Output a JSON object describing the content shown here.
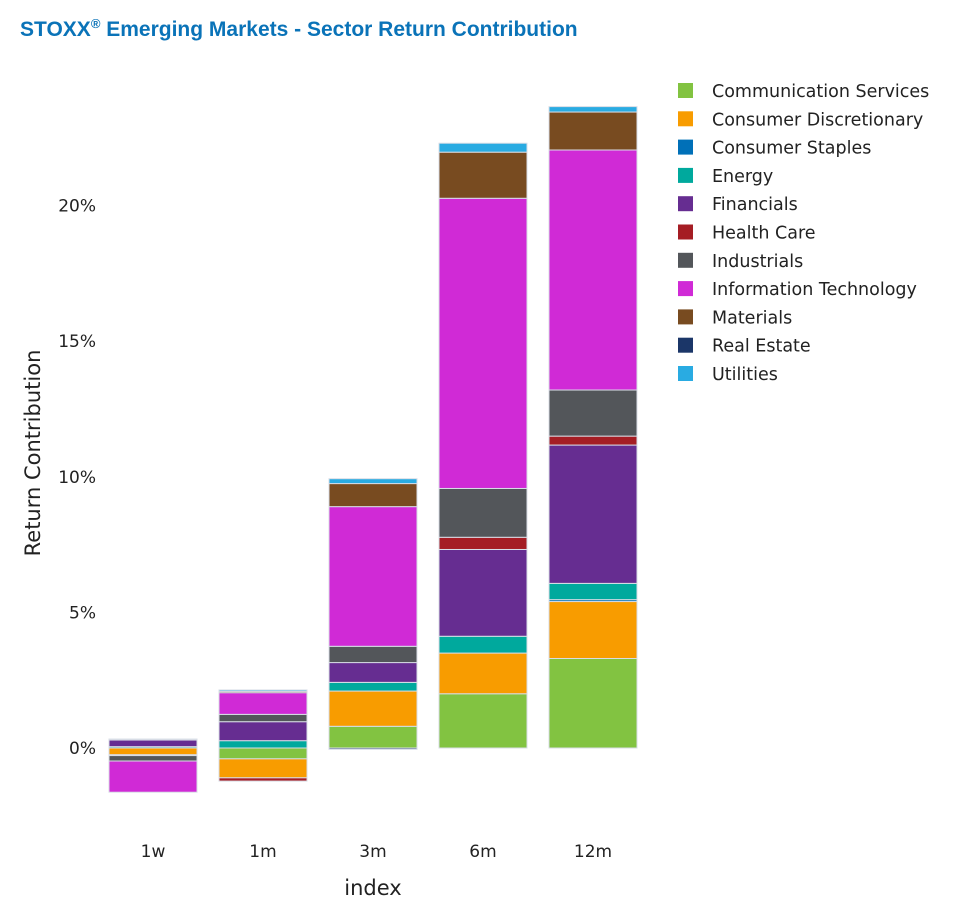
{
  "chart_data": {
    "type": "bar",
    "stacked": true,
    "title": "STOXX",
    "title_sup": "®",
    "title_rest": " Emerging Markets - Sector Return Contribution",
    "xlabel": "index",
    "ylabel": "Return Contribution",
    "categories": [
      "1w",
      "1m",
      "3m",
      "6m",
      "12m"
    ],
    "yticks": [
      0,
      5,
      10,
      15,
      20
    ],
    "ytick_labels": [
      "0%",
      "5%",
      "10%",
      "15%",
      "20%"
    ],
    "ylim": [
      -2.5,
      24.5
    ],
    "legend_position": "top-right",
    "series": [
      {
        "name": "Communication Services",
        "color": "#82c341",
        "values": [
          0,
          -0.4,
          0.8,
          2.0,
          3.3
        ]
      },
      {
        "name": "Consumer Discretionary",
        "color": "#f89c00",
        "values": [
          -0.25,
          -0.7,
          1.3,
          1.5,
          2.1
        ]
      },
      {
        "name": "Consumer Staples",
        "color": "#0070b8",
        "values": [
          -0.03,
          0,
          0,
          0,
          0.07
        ]
      },
      {
        "name": "Energy",
        "color": "#00a99d",
        "values": [
          0.05,
          0.27,
          0.32,
          0.62,
          0.6
        ]
      },
      {
        "name": "Financials",
        "color": "#662d91",
        "values": [
          0.25,
          0.7,
          0.73,
          3.2,
          5.1
        ]
      },
      {
        "name": "Health Care",
        "color": "#a51d24",
        "values": [
          0,
          -0.12,
          0,
          0.45,
          0.33
        ]
      },
      {
        "name": "Industrials",
        "color": "#53565a",
        "values": [
          -0.2,
          0.27,
          0.6,
          1.8,
          1.7
        ]
      },
      {
        "name": "Information Technology",
        "color": "#d02ad6",
        "values": [
          -1.15,
          0.8,
          5.15,
          10.7,
          8.85
        ]
      },
      {
        "name": "Materials",
        "color": "#784b20",
        "values": [
          0,
          0.05,
          0.85,
          1.7,
          1.4
        ]
      },
      {
        "name": "Real Estate",
        "color": "#1b3668",
        "values": [
          0,
          0,
          -0.05,
          0,
          0
        ]
      },
      {
        "name": "Utilities",
        "color": "#29abe2",
        "values": [
          0.03,
          0.05,
          0.18,
          0.33,
          0.2
        ]
      }
    ]
  }
}
